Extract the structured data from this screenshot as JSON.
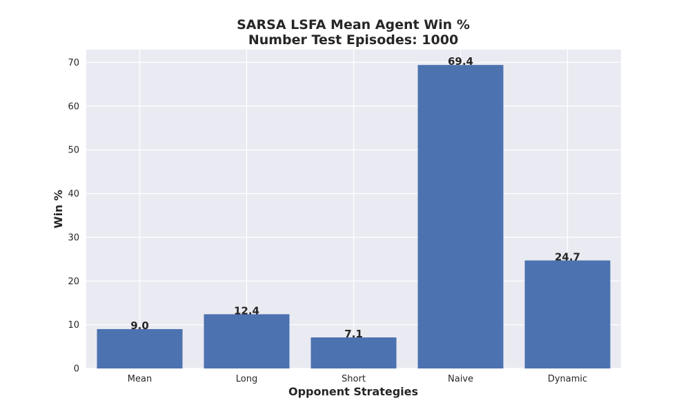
{
  "chart_data": {
    "type": "bar",
    "title_line1": "SARSA LSFA Mean Agent Win %",
    "title_line2": "Number Test Episodes: 1000",
    "xlabel": "Opponent Strategies",
    "ylabel": "Win %",
    "categories": [
      "Mean",
      "Long",
      "Short",
      "Naive",
      "Dynamic"
    ],
    "values": [
      9.0,
      12.4,
      7.1,
      69.4,
      24.7
    ],
    "data_labels": [
      "9.0",
      "12.4",
      "7.1",
      "69.4",
      "24.7"
    ],
    "yticks": [
      0,
      10,
      20,
      30,
      40,
      50,
      60,
      70
    ],
    "ylim": [
      0,
      72.9
    ],
    "grid": true,
    "bar_color": "#4c72b0",
    "plot_background": "#eaeaf2",
    "grid_color": "#ffffff"
  }
}
